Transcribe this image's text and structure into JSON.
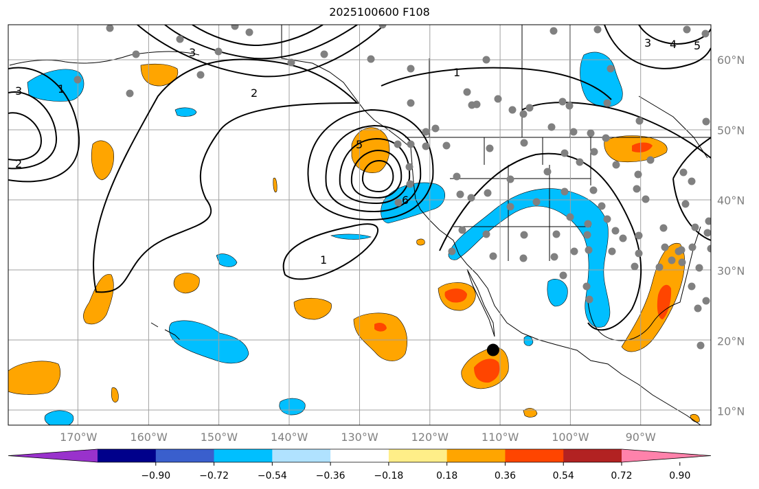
{
  "title": "2025100600 F108",
  "map": {
    "lon_range": [
      -180,
      -80
    ],
    "lat_range": [
      8,
      65
    ],
    "lon_labels": [
      {
        "lon": -170,
        "text": "170°W"
      },
      {
        "lon": -160,
        "text": "160°W"
      },
      {
        "lon": -150,
        "text": "150°W"
      },
      {
        "lon": -140,
        "text": "140°W"
      },
      {
        "lon": -130,
        "text": "130°W"
      },
      {
        "lon": -120,
        "text": "120°W"
      },
      {
        "lon": -110,
        "text": "110°W"
      },
      {
        "lon": -100,
        "text": "100°W"
      },
      {
        "lon": -90,
        "text": "90°W"
      }
    ],
    "lat_labels": [
      {
        "lat": 60,
        "text": "60°N"
      },
      {
        "lat": 50,
        "text": "50°N"
      },
      {
        "lat": 40,
        "text": "40°N"
      },
      {
        "lat": 30,
        "text": "30°N"
      },
      {
        "lat": 20,
        "text": "20°N"
      },
      {
        "lat": 10,
        "text": "10°N"
      }
    ],
    "contour_labels": [
      "1",
      "2",
      "3",
      "4",
      "5",
      "6"
    ],
    "marker": {
      "lon": -111,
      "lat": 18.7,
      "color": "#000000"
    }
  },
  "colorbar": {
    "colors": [
      "#9932cc",
      "#00008b",
      "#3a5fcd",
      "#00bfff",
      "#b0e2ff",
      "#ffffff",
      "#ffee88",
      "#ffa500",
      "#ff4500",
      "#b22222",
      "#ff82ab"
    ],
    "ticks": [
      "−0.90",
      "−0.72",
      "−0.54",
      "−0.36",
      "−0.18",
      "0.18",
      "0.36",
      "0.54",
      "0.72",
      "0.90"
    ]
  },
  "colors": {
    "positive_fill": "#ffa500",
    "strong_positive_fill": "#ff4500",
    "negative_fill": "#00bfff",
    "station_dot": "#808080",
    "grid": "#a0a0a0"
  }
}
